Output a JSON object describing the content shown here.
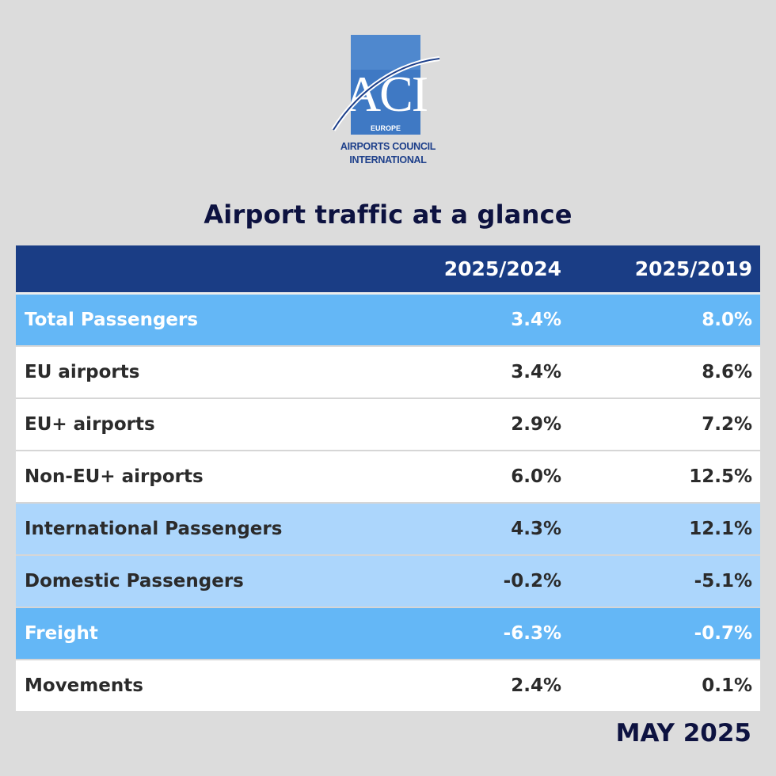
{
  "logo": {
    "mark": "ACI",
    "region": "EUROPE",
    "line1": "AIRPORTS COUNCIL",
    "line2": "INTERNATIONAL"
  },
  "title": "Airport traffic at a glance",
  "colors": {
    "header": "#1a3d85",
    "highlight": "#64b7f6",
    "subhighlight": "#acd6fc",
    "plain": "#ffffff",
    "title": "#0d1240",
    "background": "#dcdcdc"
  },
  "chart_data": {
    "type": "table",
    "title": "Airport traffic at a glance",
    "columns": [
      "",
      "2025/2024",
      "2025/2019"
    ],
    "rows": [
      {
        "label": "Total Passengers",
        "v1": "3.4%",
        "v2": "8.0%",
        "style": "hl"
      },
      {
        "label": "EU airports",
        "v1": "3.4%",
        "v2": "8.6%",
        "style": "plain"
      },
      {
        "label": "EU+ airports",
        "v1": "2.9%",
        "v2": "7.2%",
        "style": "plain"
      },
      {
        "label": "Non-EU+ airports",
        "v1": "6.0%",
        "v2": "12.5%",
        "style": "plain"
      },
      {
        "label": "International Passengers",
        "v1": "4.3%",
        "v2": "12.1%",
        "style": "sub"
      },
      {
        "label": "Domestic Passengers",
        "v1": "-0.2%",
        "v2": "-5.1%",
        "style": "sub"
      },
      {
        "label": "Freight",
        "v1": "-6.3%",
        "v2": "-0.7%",
        "style": "hl"
      },
      {
        "label": "Movements",
        "v1": "2.4%",
        "v2": "0.1%",
        "style": "plain"
      }
    ]
  },
  "footer": "MAY 2025"
}
